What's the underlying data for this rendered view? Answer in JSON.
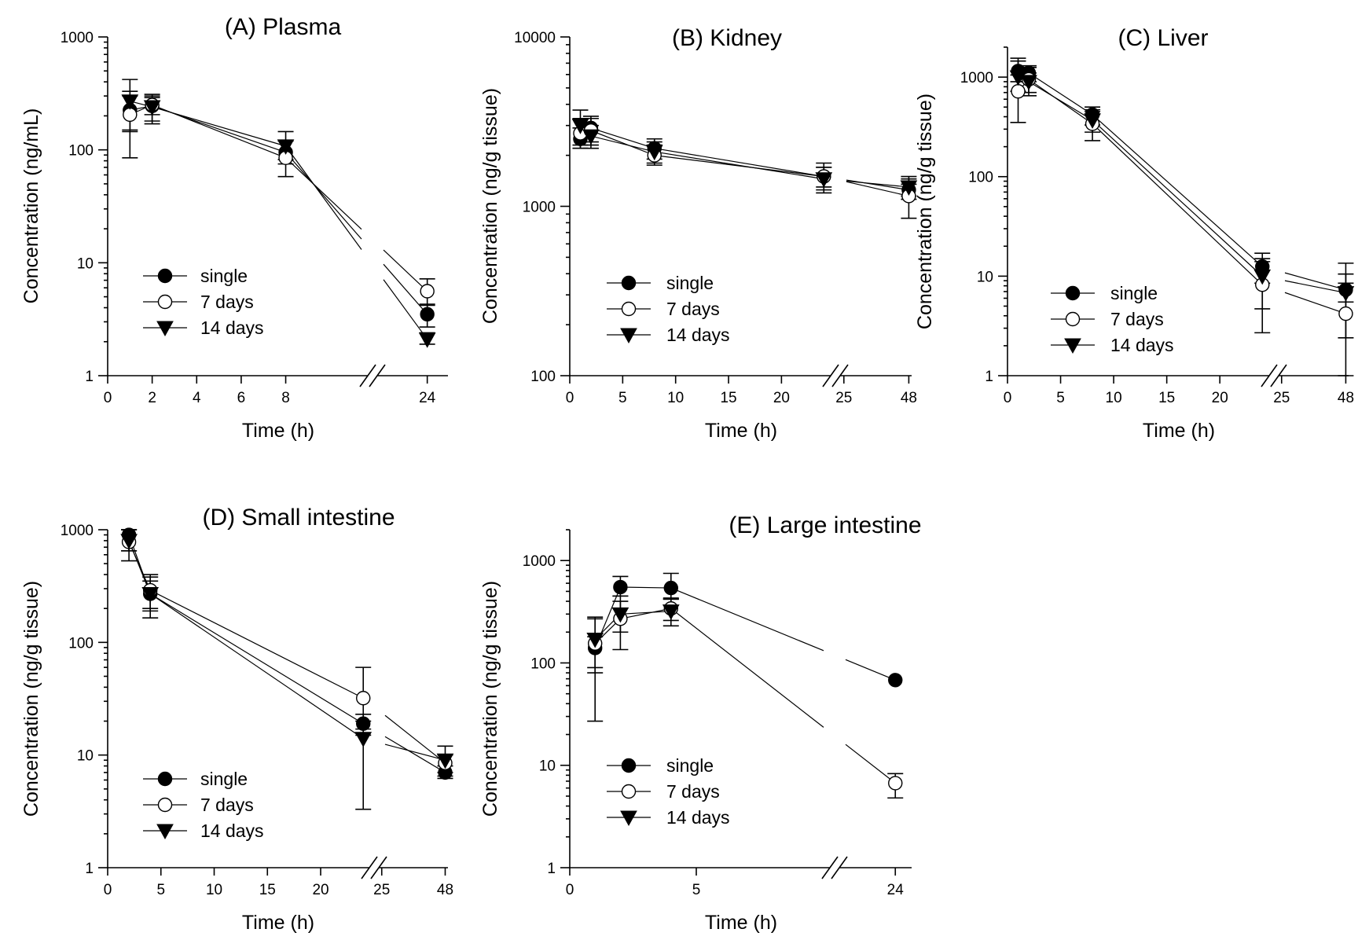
{
  "figure": {
    "background": "#ffffff",
    "color": "#000000"
  },
  "legend_labels": [
    "single",
    "7 days",
    "14 days"
  ],
  "chart_data": [
    {
      "id": "A",
      "type": "line",
      "title": "(A) Plasma",
      "xlabel": "Time (h)",
      "ylabel": "Concentration (ng/mL)",
      "yscale": "log",
      "ylim": [
        1,
        1000
      ],
      "y_ticks": [
        "1",
        "10",
        "100",
        "1000"
      ],
      "x_segments": [
        {
          "range": [
            0,
            11.3
          ],
          "ticks": [
            "0",
            "2",
            "4",
            "6",
            "8"
          ],
          "tick_values": [
            0,
            2,
            4,
            6,
            8
          ]
        },
        {
          "range": [
            22,
            25
          ],
          "ticks": [
            "24"
          ],
          "tick_values": [
            24
          ]
        }
      ],
      "series": [
        {
          "name": "single",
          "marker": "filled-circle",
          "x": [
            1,
            2,
            8,
            24
          ],
          "y": [
            225,
            245,
            95,
            3.5
          ],
          "err_low": [
            150,
            205,
            75,
            2.7
          ],
          "err_high": [
            300,
            290,
            120,
            4.3
          ]
        },
        {
          "name": "7 days",
          "marker": "open-circle",
          "x": [
            1,
            2,
            8,
            24
          ],
          "y": [
            205,
            250,
            85,
            5.6
          ],
          "err_low": [
            85,
            180,
            58,
            4.2
          ],
          "err_high": [
            330,
            310,
            120,
            7.2
          ]
        },
        {
          "name": "14 days",
          "marker": "filled-triangle-down",
          "x": [
            1,
            2,
            8,
            24
          ],
          "y": [
            270,
            240,
            108,
            2.1
          ],
          "err_low": [
            145,
            170,
            82,
            1.9
          ],
          "err_high": [
            420,
            300,
            145,
            2.4
          ]
        }
      ]
    },
    {
      "id": "B",
      "type": "line",
      "title": "(B) Kidney",
      "xlabel": "Time (h)",
      "ylabel": "Concentration (ng/g tissue)",
      "yscale": "log",
      "ylim": [
        100,
        10000
      ],
      "y_ticks": [
        "100",
        "1000",
        "10000"
      ],
      "x_segments": [
        {
          "range": [
            0,
            24.5
          ],
          "ticks": [
            "0",
            "5",
            "10",
            "15",
            "20"
          ],
          "tick_values": [
            0,
            5,
            10,
            15,
            20
          ]
        },
        {
          "range": [
            24.5,
            49
          ],
          "ticks": [
            "25",
            "48"
          ],
          "tick_values": [
            25,
            48
          ]
        }
      ],
      "series": [
        {
          "name": "single",
          "marker": "filled-circle",
          "x": [
            1,
            2,
            8,
            24,
            48
          ],
          "y": [
            2500,
            2900,
            2200,
            1500,
            1250
          ],
          "err_low": [
            2200,
            2400,
            1900,
            1300,
            1100
          ],
          "err_high": [
            2900,
            3300,
            2500,
            1700,
            1450
          ]
        },
        {
          "name": "7 days",
          "marker": "open-circle",
          "x": [
            1,
            2,
            8,
            24,
            48
          ],
          "y": [
            2700,
            2800,
            2000,
            1500,
            1150
          ],
          "err_low": [
            2200,
            2300,
            1750,
            1200,
            850
          ],
          "err_high": [
            3300,
            3400,
            2300,
            1800,
            1350
          ]
        },
        {
          "name": "14 days",
          "marker": "filled-triangle-down",
          "x": [
            1,
            2,
            8,
            24,
            48
          ],
          "y": [
            3000,
            2600,
            2100,
            1450,
            1300
          ],
          "err_low": [
            2300,
            2200,
            1800,
            1250,
            1150
          ],
          "err_high": [
            3700,
            3000,
            2400,
            1700,
            1500
          ]
        }
      ]
    },
    {
      "id": "C",
      "type": "line",
      "title": "(C) Liver",
      "xlabel": "Time (h)",
      "ylabel": "Concentration (ng/g tissue)",
      "yscale": "log",
      "ylim": [
        1,
        2000
      ],
      "y_ticks": [
        "1",
        "10",
        "100",
        "1000"
      ],
      "x_segments": [
        {
          "range": [
            0,
            24.5
          ],
          "ticks": [
            "0",
            "5",
            "10",
            "15",
            "20"
          ],
          "tick_values": [
            0,
            5,
            10,
            15,
            20
          ]
        },
        {
          "range": [
            24.5,
            49
          ],
          "ticks": [
            "25",
            "48"
          ],
          "tick_values": [
            25,
            48
          ]
        }
      ],
      "series": [
        {
          "name": "single",
          "marker": "filled-circle",
          "x": [
            1,
            2,
            8,
            24,
            48
          ],
          "y": [
            1150,
            1100,
            420,
            12.5,
            7.3
          ],
          "err_low": [
            900,
            900,
            330,
            8.5,
            5.5
          ],
          "err_high": [
            1450,
            1300,
            500,
            17,
            10.5
          ]
        },
        {
          "name": "7 days",
          "marker": "open-circle",
          "x": [
            1,
            2,
            8,
            24,
            48
          ],
          "y": [
            720,
            950,
            340,
            8.2,
            4.2
          ],
          "err_low": [
            350,
            650,
            230,
            2.7,
            1.0
          ],
          "err_high": [
            1050,
            1250,
            450,
            14,
            13.5
          ]
        },
        {
          "name": "14 days",
          "marker": "filled-triangle-down",
          "x": [
            1,
            2,
            8,
            24,
            48
          ],
          "y": [
            1000,
            900,
            370,
            10,
            6.8
          ],
          "err_low": [
            720,
            700,
            280,
            4.7,
            2.4
          ],
          "err_high": [
            1550,
            1100,
            470,
            15,
            8.5
          ]
        }
      ]
    },
    {
      "id": "D",
      "type": "line",
      "title": "(D) Small intestine",
      "xlabel": "Time (h)",
      "ylabel": "Concentration (ng/g tissue)",
      "yscale": "log",
      "ylim": [
        1,
        1000
      ],
      "y_ticks": [
        "1",
        "10",
        "100",
        "1000"
      ],
      "x_segments": [
        {
          "range": [
            0,
            24.5
          ],
          "ticks": [
            "0",
            "5",
            "10",
            "15",
            "20"
          ],
          "tick_values": [
            0,
            5,
            10,
            15,
            20
          ]
        },
        {
          "range": [
            24.5,
            49
          ],
          "ticks": [
            "25",
            "48"
          ],
          "tick_values": [
            25,
            48
          ]
        }
      ],
      "series": [
        {
          "name": "single",
          "marker": "filled-circle",
          "x": [
            2,
            4,
            24,
            48
          ],
          "y": [
            900,
            270,
            19,
            7
          ],
          "err_low": [
            650,
            190,
            15,
            6.2
          ],
          "err_high": [
            1000,
            350,
            23,
            8
          ]
        },
        {
          "name": "7 days",
          "marker": "open-circle",
          "x": [
            2,
            4,
            24,
            48
          ],
          "y": [
            780,
            290,
            32,
            8.5
          ],
          "err_low": [
            650,
            200,
            20,
            6.5
          ],
          "err_high": [
            1000,
            380,
            60,
            10
          ]
        },
        {
          "name": "14 days",
          "marker": "filled-triangle-down",
          "x": [
            2,
            4,
            24,
            48
          ],
          "y": [
            800,
            270,
            14,
            9
          ],
          "err_low": [
            530,
            165,
            3.3,
            7
          ],
          "err_high": [
            1000,
            400,
            17,
            12
          ]
        }
      ]
    },
    {
      "id": "E",
      "type": "line",
      "title": "(E) Large intestine",
      "xlabel": "Time (h)",
      "ylabel": "Concentration (ng/g tissue)",
      "yscale": "log",
      "ylim": [
        1,
        2000
      ],
      "y_ticks": [
        "1",
        "10",
        "100",
        "1000"
      ],
      "x_segments": [
        {
          "range": [
            0,
            10
          ],
          "ticks": [
            "0",
            "5"
          ],
          "tick_values": [
            0,
            5
          ]
        },
        {
          "range": [
            21,
            25
          ],
          "ticks": [
            "24"
          ],
          "tick_values": [
            24
          ]
        }
      ],
      "series": [
        {
          "name": "single",
          "marker": "filled-circle",
          "x": [
            1,
            2,
            4,
            24
          ],
          "y": [
            140,
            550,
            540,
            68
          ],
          "err_low": [
            80,
            450,
            420,
            null
          ],
          "err_high": [
            180,
            700,
            750,
            null
          ]
        },
        {
          "name": "7 days",
          "marker": "open-circle",
          "x": [
            1,
            2,
            4,
            24
          ],
          "y": [
            155,
            270,
            340,
            6.7
          ],
          "err_low": [
            27,
            135,
            230,
            4.8
          ],
          "err_high": [
            270,
            400,
            430,
            8.3
          ]
        },
        {
          "name": "14 days",
          "marker": "filled-triangle-down",
          "x": [
            1,
            2,
            4
          ],
          "y": [
            170,
            300,
            320
          ],
          "err_low": [
            90,
            200,
            260
          ],
          "err_high": [
            280,
            450,
            420
          ]
        }
      ]
    }
  ]
}
